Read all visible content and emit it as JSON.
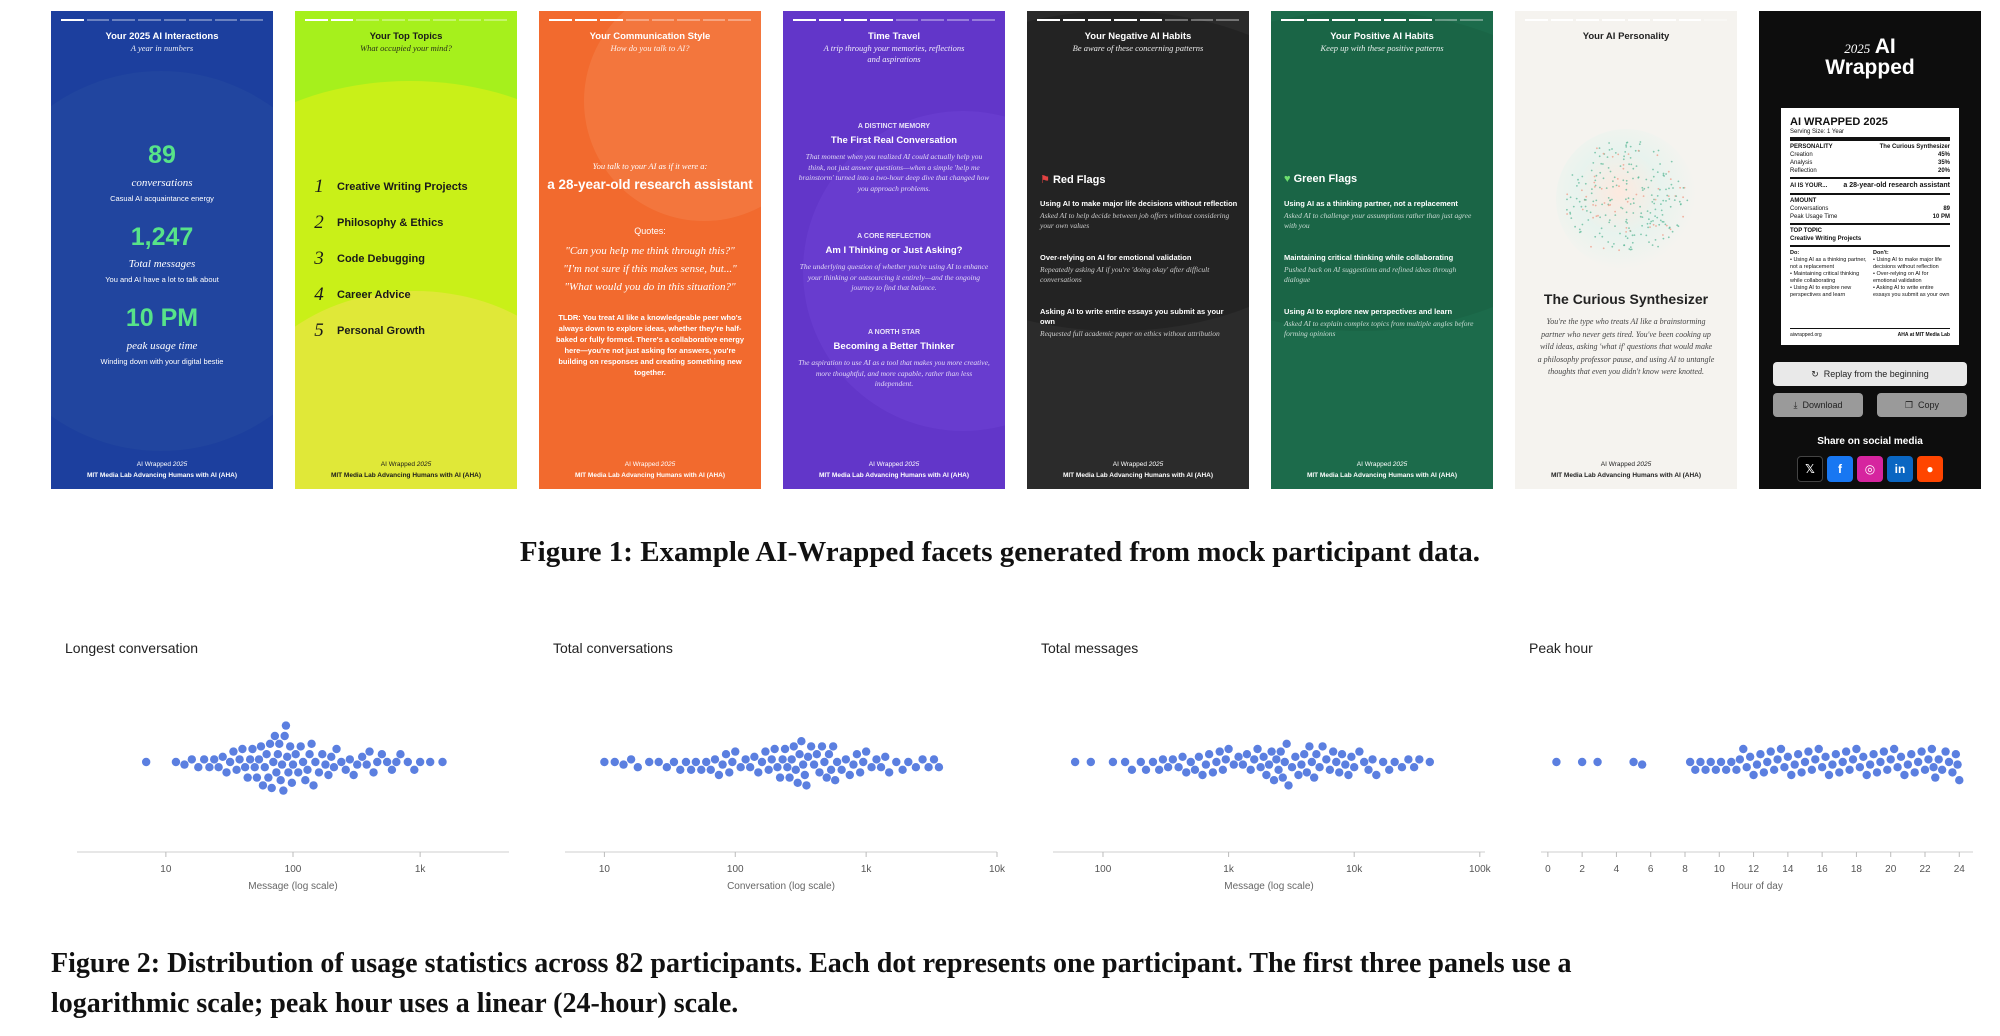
{
  "footer": {
    "line1": "AI Wrapped",
    "year": "2025",
    "line2": "MIT Media Lab Advancing Humans with AI (AHA)"
  },
  "cards": [
    {
      "title": "Your 2025 AI Interactions",
      "subtitle": "A year in numbers",
      "stats": [
        {
          "value": "89",
          "label": "conversations",
          "note": "Casual AI acquaintance energy"
        },
        {
          "value": "1,247",
          "label": "Total messages",
          "note": "You and AI have a lot to talk about"
        },
        {
          "value": "10 PM",
          "label": "peak usage time",
          "note": "Winding down with your digital bestie"
        }
      ],
      "color": "#1c3f9e"
    },
    {
      "title": "Your Top Topics",
      "subtitle": "What occupied your mind?",
      "topics": [
        "Creative Writing Projects",
        "Philosophy & Ethics",
        "Code Debugging",
        "Career Advice",
        "Personal Growth"
      ],
      "numbers": [
        "1",
        "2",
        "3",
        "4",
        "5"
      ],
      "color": "#c9f018"
    },
    {
      "title": "Your Communication Style",
      "subtitle": "How do you talk to AI?",
      "lead": "You talk to your AI as if it were a:",
      "persona": "a 28-year-old research assistant",
      "quotes_label": "Quotes:",
      "quotes": [
        "\"Can you help me think through this?\"",
        "\"I'm not sure if this makes sense, but...\"",
        "\"What would you do in this situation?\""
      ],
      "tldr": "TLDR: You treat AI like a knowledgeable peer who's always down to explore ideas, whether they're half-baked or fully formed. There's a collaborative energy here—you're not just asking for answers, you're building on responses and creating something new together.",
      "color": "#f26a2e"
    },
    {
      "title": "Time Travel",
      "subtitle": "A trip through your memories, reflections and aspirations",
      "sections": [
        {
          "kicker": "A DISTINCT MEMORY",
          "head": "The First Real Conversation",
          "body": "That moment when you realized AI could actually help you think, not just answer questions—when a simple 'help me brainstorm' turned into a two-hour deep dive that changed how you approach problems."
        },
        {
          "kicker": "A CORE REFLECTION",
          "head": "Am I Thinking or Just Asking?",
          "body": "The underlying question of whether you're using AI to enhance your thinking or outsourcing it entirely—and the ongoing journey to find that balance."
        },
        {
          "kicker": "A NORTH STAR",
          "head": "Becoming a Better Thinker",
          "body": "The aspiration to use AI as a tool that makes you more creative, more thoughtful, and more capable, rather than less independent."
        }
      ],
      "color": "#6236c9"
    },
    {
      "title": "Your Negative AI Habits",
      "subtitle": "Be aware of these concerning patterns",
      "heading": "Red Flags",
      "items": [
        {
          "t": "Using AI to make major life decisions without reflection",
          "d": "Asked AI to help decide between job offers without considering your own values"
        },
        {
          "t": "Over-relying on AI for emotional validation",
          "d": "Repeatedly asking AI if you're 'doing okay' after difficult conversations"
        },
        {
          "t": "Asking AI to write entire essays you submit as your own",
          "d": "Requested full academic paper on ethics without attribution"
        }
      ],
      "color": "#2b2b2b"
    },
    {
      "title": "Your Positive AI Habits",
      "subtitle": "Keep up with these positive patterns",
      "heading": "Green Flags",
      "items": [
        {
          "t": "Using AI as a thinking partner, not a replacement",
          "d": "Asked AI to challenge your assumptions rather than just agree with you"
        },
        {
          "t": "Maintaining critical thinking while collaborating",
          "d": "Pushed back on AI suggestions and refined ideas through dialogue"
        },
        {
          "t": "Using AI to explore new perspectives and learn",
          "d": "Asked AI to explain complex topics from multiple angles before forming opinions"
        }
      ],
      "color": "#1c6b4b"
    },
    {
      "title": "Your AI Personality",
      "name": "The Curious Synthesizer",
      "body": "You're the type who treats AI like a brainstorming partner who never gets tired. You've been cooking up wild ideas, asking 'what if' questions that would make a philosophy professor pause, and using AI to untangle thoughts that even you didn't know were knotted.",
      "color": "#f5f3ef"
    },
    {
      "logo_year": "2025",
      "logo_line1": "AI",
      "logo_line2": "Wrapped",
      "label": {
        "title": "AI WRAPPED 2025",
        "serving": "Serving Size: 1 Year",
        "personality_k": "PERSONALITY",
        "personality_v": "The Curious Synthesizer",
        "rows": [
          [
            "Creation",
            "45%"
          ],
          [
            "Analysis",
            "35%"
          ],
          [
            "Reflection",
            "20%"
          ]
        ],
        "aiis_k": "AI IS YOUR...",
        "aiis_v": "a 28-year-old research assistant",
        "amount_k": "AMOUNT",
        "amount_rows": [
          [
            "Conversations",
            "89"
          ],
          [
            "Peak Usage Time",
            "10 PM"
          ]
        ],
        "topic_k": "TOP TOPIC",
        "topic_v": "Creative Writing Projects",
        "do_k": "Do:",
        "dont_k": "Don't:",
        "dos": [
          "• Using AI as a thinking partner, not a replacement",
          "• Maintaining critical thinking while collaborating",
          "• Using AI to explore new perspectives and learn"
        ],
        "donts": [
          "• Using AI to make major life decisions without reflection",
          "• Over-relying on AI for emotional validation",
          "• Asking AI to write entire essays you submit as your own"
        ],
        "foot_l": "aiwrapped.org",
        "foot_r": "AHA at MIT Media Lab"
      },
      "replay": "Replay from the beginning",
      "download": "Download",
      "copy": "Copy",
      "share": "Share on social media",
      "color": "#0d0d0d"
    }
  ],
  "figure1_caption": "Figure 1: Example AI-Wrapped facets generated from mock participant data.",
  "figure2_caption_l1": "Figure 2: Distribution of usage statistics across 82 participants. Each dot represents one participant. The first three panels use a",
  "figure2_caption_l2": "logarithmic scale; peak hour uses a linear (24-hour) scale.",
  "chart_data": [
    {
      "type": "scatter",
      "title": "Longest conversation",
      "xlabel": "Message (log scale)",
      "scale": "log",
      "xlim": [
        2,
        5000
      ],
      "ticks": [
        10,
        100,
        1000
      ],
      "tick_labels": [
        "10",
        "100",
        "1k"
      ],
      "values": [
        7,
        12,
        14,
        16,
        18,
        20,
        22,
        24,
        26,
        28,
        30,
        32,
        34,
        36,
        38,
        40,
        42,
        44,
        46,
        48,
        50,
        52,
        54,
        56,
        58,
        60,
        62,
        64,
        66,
        68,
        70,
        72,
        74,
        76,
        78,
        80,
        82,
        84,
        86,
        88,
        90,
        92,
        95,
        98,
        100,
        105,
        110,
        115,
        120,
        125,
        130,
        135,
        140,
        145,
        150,
        160,
        170,
        180,
        190,
        200,
        210,
        220,
        240,
        260,
        280,
        300,
        320,
        350,
        380,
        400,
        430,
        460,
        500,
        550,
        600,
        650,
        700,
        800,
        900,
        1000,
        1200,
        1500
      ]
    },
    {
      "type": "scatter",
      "title": "Total conversations",
      "xlabel": "Conversation (log scale)",
      "scale": "log",
      "xlim": [
        5,
        10000
      ],
      "ticks": [
        10,
        100,
        1000,
        10000
      ],
      "tick_labels": [
        "10",
        "100",
        "1k",
        "10k"
      ],
      "values": [
        10,
        12,
        14,
        16,
        18,
        22,
        26,
        30,
        34,
        38,
        42,
        46,
        50,
        55,
        60,
        65,
        70,
        75,
        80,
        85,
        90,
        95,
        100,
        110,
        120,
        130,
        140,
        150,
        160,
        170,
        180,
        190,
        200,
        210,
        220,
        230,
        240,
        250,
        260,
        270,
        280,
        290,
        300,
        310,
        320,
        330,
        340,
        350,
        360,
        380,
        400,
        420,
        440,
        460,
        480,
        500,
        520,
        540,
        560,
        580,
        600,
        650,
        700,
        750,
        800,
        850,
        900,
        950,
        1000,
        1100,
        1200,
        1300,
        1400,
        1500,
        1700,
        1900,
        2100,
        2400,
        2700,
        3000,
        3300,
        3600
      ]
    },
    {
      "type": "scatter",
      "title": "Total messages",
      "xlabel": "Message (log scale)",
      "scale": "log",
      "xlim": [
        40,
        110000
      ],
      "ticks": [
        100,
        1000,
        10000,
        100000
      ],
      "tick_labels": [
        "100",
        "1k",
        "10k",
        "100k"
      ],
      "values": [
        60,
        80,
        120,
        150,
        170,
        200,
        220,
        250,
        280,
        300,
        330,
        360,
        400,
        430,
        460,
        500,
        540,
        580,
        620,
        660,
        700,
        750,
        800,
        850,
        900,
        950,
        1000,
        1100,
        1200,
        1300,
        1400,
        1500,
        1600,
        1700,
        1800,
        1900,
        2000,
        2100,
        2200,
        2300,
        2400,
        2500,
        2600,
        2700,
        2800,
        2900,
        3000,
        3200,
        3400,
        3600,
        3800,
        4000,
        4200,
        4400,
        4600,
        4800,
        5000,
        5300,
        5600,
        6000,
        6400,
        6800,
        7200,
        7600,
        8000,
        8500,
        9000,
        9500,
        10000,
        11000,
        12000,
        13000,
        14000,
        15000,
        17000,
        19000,
        21000,
        24000,
        27000,
        30000,
        33000,
        40000
      ]
    },
    {
      "type": "scatter",
      "title": "Peak hour",
      "xlabel": "Hour of day",
      "scale": "linear",
      "xlim": [
        -0.4,
        24.8
      ],
      "ticks": [
        0,
        2,
        4,
        6,
        8,
        10,
        12,
        14,
        16,
        18,
        20,
        22,
        24
      ],
      "tick_labels": [
        "0",
        "2",
        "4",
        "6",
        "8",
        "10",
        "12",
        "14",
        "16",
        "18",
        "20",
        "22",
        "24"
      ],
      "values": [
        0.5,
        2,
        2.9,
        5,
        5.5,
        8.3,
        8.6,
        8.9,
        9.2,
        9.5,
        9.8,
        10.1,
        10.4,
        10.7,
        11,
        11.2,
        11.4,
        11.6,
        11.8,
        12,
        12.2,
        12.4,
        12.6,
        12.8,
        13,
        13.2,
        13.4,
        13.6,
        13.8,
        14,
        14.2,
        14.4,
        14.6,
        14.8,
        15,
        15.2,
        15.4,
        15.6,
        15.8,
        16,
        16.2,
        16.4,
        16.6,
        16.8,
        17,
        17.2,
        17.4,
        17.6,
        17.8,
        18,
        18.2,
        18.4,
        18.6,
        18.8,
        19,
        19.2,
        19.4,
        19.6,
        19.8,
        20,
        20.2,
        20.4,
        20.6,
        20.8,
        21,
        21.2,
        21.4,
        21.6,
        21.8,
        22,
        22.2,
        22.4,
        22.6,
        22.8,
        23,
        23.2,
        23.4,
        23.6,
        23.8,
        23.9,
        24,
        22.5
      ]
    }
  ]
}
